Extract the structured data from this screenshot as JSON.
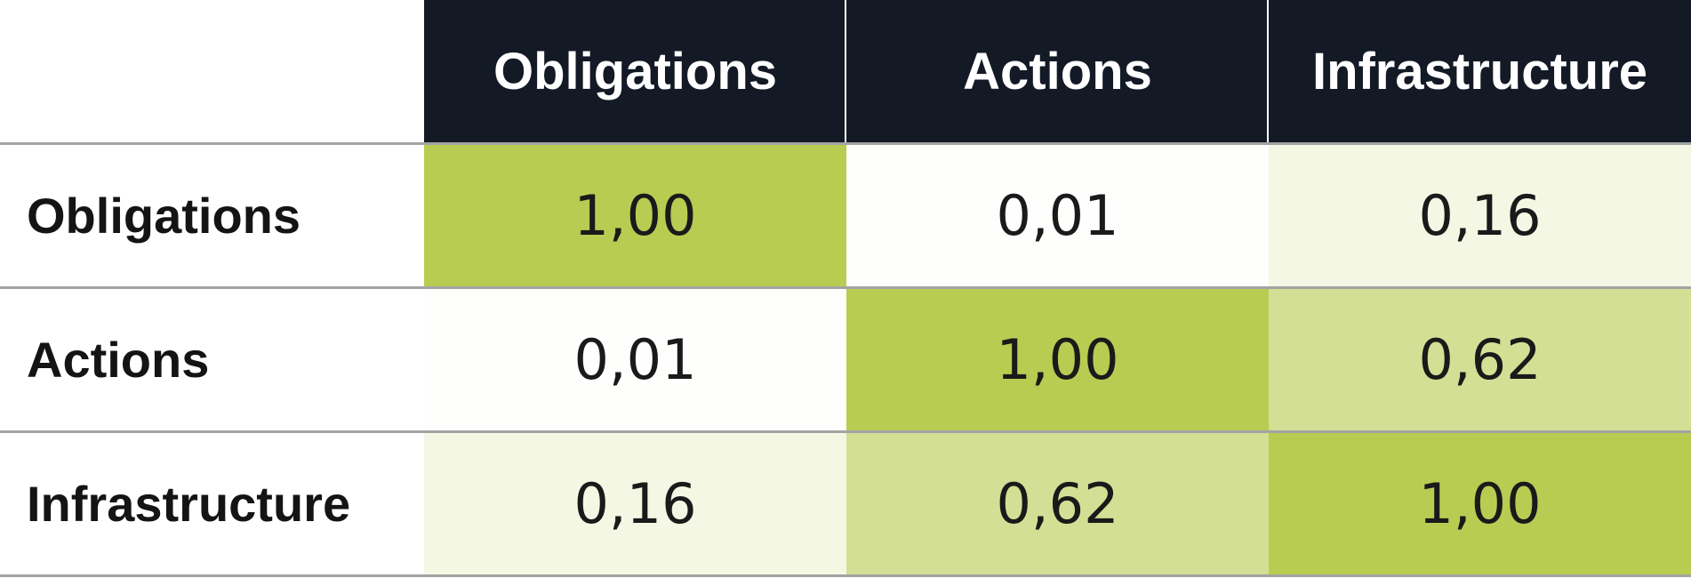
{
  "chart_data": {
    "type": "heatmap",
    "title": "",
    "columns": [
      "Obligations",
      "Actions",
      "Infrastructure"
    ],
    "rows": [
      "Obligations",
      "Actions",
      "Infrastructure"
    ],
    "values": [
      [
        "1,00",
        "0,01",
        "0,16"
      ],
      [
        "0,01",
        "1,00",
        "0,62"
      ],
      [
        "0,16",
        "0,62",
        "1,00"
      ]
    ],
    "numeric_values": [
      [
        1.0,
        0.01,
        0.16
      ],
      [
        0.01,
        1.0,
        0.62
      ],
      [
        0.16,
        0.62,
        1.0
      ]
    ],
    "color_scale": {
      "low": "#ffffff",
      "high": "#b8cc52",
      "header": "#131a26"
    }
  }
}
